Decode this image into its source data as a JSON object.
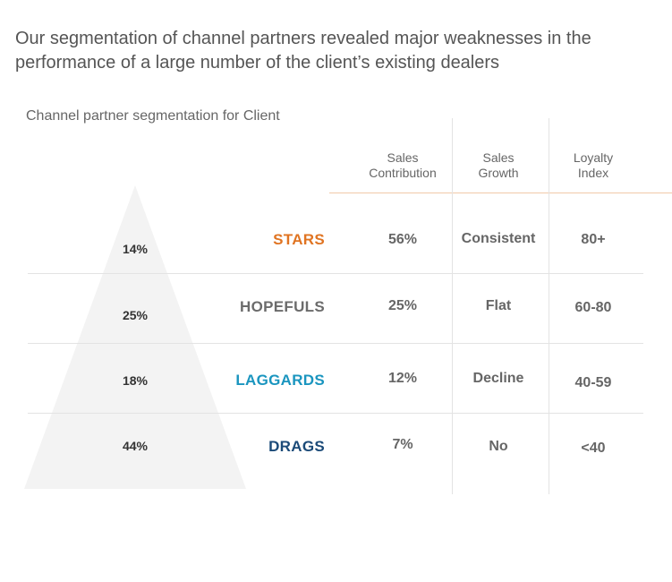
{
  "headline": "Our segmentation of channel partners revealed major weaknesses in the performance of a large number of the client’s existing dealers",
  "subtitle": "Channel partner segmentation for Client",
  "columns": {
    "sales_contribution": "Sales\nContribution",
    "sales_growth": "Sales\nGrowth",
    "loyalty_index": "Loyalty\nIndex"
  },
  "rows": [
    {
      "share": "14%",
      "segment": "STARS",
      "color": "#e07422",
      "contribution": "56%",
      "growth": "Consistent",
      "loyalty": "80+"
    },
    {
      "share": "25%",
      "segment": "HOPEFULS",
      "color": "#6b6b6b",
      "contribution": "25%",
      "growth": "Flat",
      "loyalty": "60-80"
    },
    {
      "share": "18%",
      "segment": "LAGGARDS",
      "color": "#1a95bf",
      "contribution": "12%",
      "growth": "Decline",
      "loyalty": "40-59"
    },
    {
      "share": "44%",
      "segment": "DRAGS",
      "color": "#1b4a78",
      "contribution": "7%",
      "growth": "No",
      "loyalty": "<40"
    }
  ]
}
